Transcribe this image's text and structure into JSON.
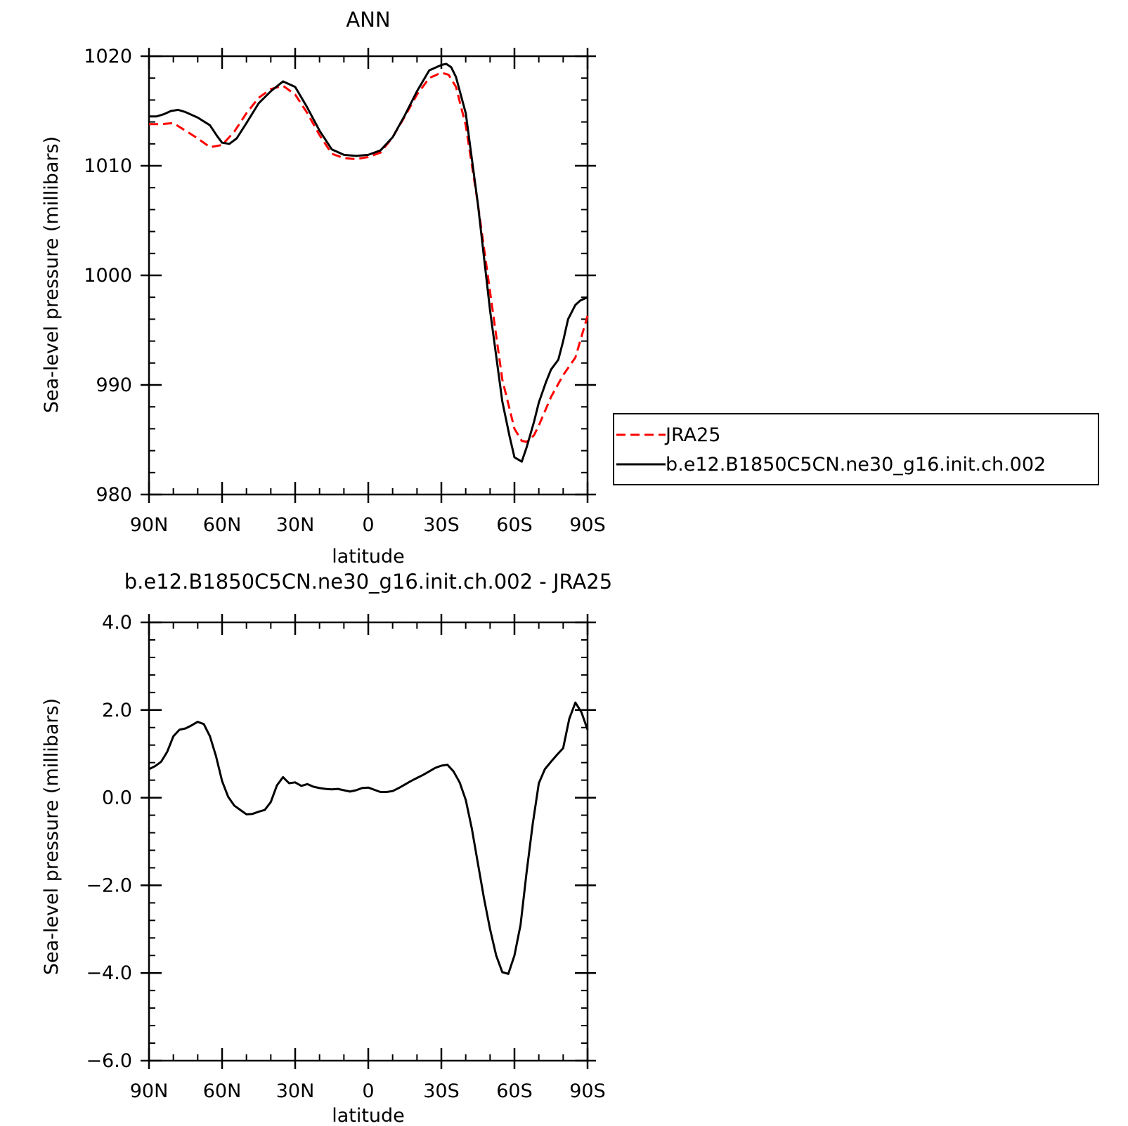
{
  "legend": {
    "entries": [
      {
        "label": "JRA25",
        "color": "#ff0000",
        "dash": true
      },
      {
        "label": "b.e12.B1850C5CN.ne30_g16.init.ch.002",
        "color": "#000000",
        "dash": false
      }
    ]
  },
  "chart_data": [
    {
      "type": "line",
      "title": "ANN",
      "xlabel": "latitude",
      "ylabel": "Sea-level pressure (millibars)",
      "xlim": [
        90,
        -90
      ],
      "ylim": [
        980,
        1020
      ],
      "xticks": [
        {
          "value": 90,
          "label": "90N"
        },
        {
          "value": 60,
          "label": "60N"
        },
        {
          "value": 30,
          "label": "30N"
        },
        {
          "value": 0,
          "label": "0"
        },
        {
          "value": -30,
          "label": "30S"
        },
        {
          "value": -60,
          "label": "60S"
        },
        {
          "value": -90,
          "label": "90S"
        }
      ],
      "yticks": [
        {
          "value": 1020,
          "label": "1020"
        },
        {
          "value": 1010,
          "label": "1010"
        },
        {
          "value": 1000,
          "label": "1000"
        },
        {
          "value": 990,
          "label": "990"
        },
        {
          "value": 980,
          "label": "980"
        }
      ],
      "legend_position": "right",
      "series": [
        {
          "name": "JRA25",
          "color": "#ff0000",
          "dash": true,
          "x": [
            90,
            85,
            80,
            75,
            70,
            65,
            60,
            55,
            50,
            45,
            40,
            35,
            30,
            25,
            20,
            15,
            10,
            5,
            0,
            -5,
            -10,
            -15,
            -20,
            -25,
            -30,
            -33,
            -36,
            -40,
            -45,
            -50,
            -55,
            -60,
            -63,
            -65,
            -68,
            -70,
            -75,
            -80,
            -85,
            -90
          ],
          "y": [
            1013.8,
            1013.8,
            1013.9,
            1013.2,
            1012.5,
            1011.7,
            1011.9,
            1013.1,
            1014.8,
            1016.2,
            1017.0,
            1017.3,
            1016.5,
            1014.8,
            1012.8,
            1011.1,
            1010.7,
            1010.6,
            1010.8,
            1011.2,
            1012.6,
            1014.5,
            1016.5,
            1018.0,
            1018.5,
            1018.3,
            1017.2,
            1013.7,
            1006.5,
            998.5,
            990.5,
            986.0,
            984.9,
            984.8,
            985.4,
            986.3,
            988.9,
            990.9,
            992.5,
            996.3
          ]
        },
        {
          "name": "b.e12.B1850C5CN.ne30_g16.init.ch.002",
          "color": "#000000",
          "dash": false,
          "x": [
            90,
            87,
            84,
            81,
            78,
            75,
            70,
            65,
            62,
            60,
            57,
            54,
            50,
            45,
            40,
            35,
            30,
            25,
            20,
            15,
            10,
            5,
            0,
            -5,
            -10,
            -15,
            -20,
            -25,
            -30,
            -32,
            -34,
            -36,
            -40,
            -45,
            -50,
            -55,
            -58,
            -60,
            -63,
            -65,
            -68,
            -70,
            -73,
            -75,
            -78,
            -80,
            -82,
            -85,
            -87,
            -90
          ],
          "y": [
            1014.5,
            1014.5,
            1014.7,
            1015.0,
            1015.1,
            1014.9,
            1014.4,
            1013.7,
            1012.7,
            1012.1,
            1012.0,
            1012.5,
            1013.9,
            1015.7,
            1016.8,
            1017.7,
            1017.2,
            1015.3,
            1013.2,
            1011.5,
            1011.0,
            1010.9,
            1011.0,
            1011.4,
            1012.6,
            1014.6,
            1016.8,
            1018.7,
            1019.2,
            1019.3,
            1019.0,
            1018.1,
            1014.8,
            1006.5,
            996.8,
            988.5,
            985.3,
            983.4,
            983.0,
            984.3,
            986.6,
            988.4,
            990.3,
            991.4,
            992.3,
            994.0,
            996.0,
            997.3,
            997.7,
            998.0
          ]
        }
      ]
    },
    {
      "type": "line",
      "title": "b.e12.B1850C5CN.ne30_g16.init.ch.002 - JRA25",
      "xlabel": "latitude",
      "ylabel": "Sea-level pressure (millibars)",
      "xlim": [
        90,
        -90
      ],
      "ylim": [
        -6,
        4
      ],
      "xticks": [
        {
          "value": 90,
          "label": "90N"
        },
        {
          "value": 60,
          "label": "60N"
        },
        {
          "value": 30,
          "label": "30N"
        },
        {
          "value": 0,
          "label": "0"
        },
        {
          "value": -30,
          "label": "30S"
        },
        {
          "value": -60,
          "label": "60S"
        },
        {
          "value": -90,
          "label": "90S"
        }
      ],
      "yticks": [
        {
          "value": 4,
          "label": "4.0"
        },
        {
          "value": 2,
          "label": "2.0"
        },
        {
          "value": 0,
          "label": "0.0"
        },
        {
          "value": -2,
          "label": "−2.0"
        },
        {
          "value": -4,
          "label": "−4.0"
        },
        {
          "value": -6,
          "label": "−6.0"
        }
      ],
      "series": [
        {
          "color": "#000000",
          "dash": false,
          "x": [
            90,
            87.5,
            85,
            82.5,
            80,
            77.5,
            75,
            72.5,
            70,
            67.5,
            65,
            62.5,
            60,
            57.5,
            55,
            52.5,
            50,
            47.5,
            45,
            42.5,
            40,
            37.5,
            35,
            32.5,
            30,
            27.5,
            25,
            22.5,
            20,
            17.5,
            15,
            12.5,
            10,
            7.5,
            5,
            2.5,
            0,
            -2.5,
            -5,
            -7.5,
            -10,
            -12.5,
            -15,
            -17.5,
            -20,
            -22.5,
            -25,
            -27.5,
            -30,
            -32.5,
            -35,
            -37.5,
            -40,
            -42.5,
            -45,
            -47.5,
            -50,
            -52.5,
            -55,
            -57.5,
            -60,
            -62.5,
            -65,
            -67.5,
            -70,
            -72.5,
            -75,
            -77.5,
            -80,
            -82.5,
            -85,
            -87.5,
            -90
          ],
          "y": [
            0.65,
            0.72,
            0.82,
            1.05,
            1.4,
            1.55,
            1.58,
            1.65,
            1.73,
            1.68,
            1.4,
            0.95,
            0.38,
            0.02,
            -0.18,
            -0.28,
            -0.38,
            -0.37,
            -0.32,
            -0.28,
            -0.1,
            0.28,
            0.47,
            0.33,
            0.35,
            0.27,
            0.31,
            0.25,
            0.22,
            0.2,
            0.19,
            0.2,
            0.17,
            0.14,
            0.17,
            0.22,
            0.23,
            0.18,
            0.13,
            0.13,
            0.15,
            0.22,
            0.3,
            0.38,
            0.45,
            0.52,
            0.6,
            0.68,
            0.73,
            0.75,
            0.6,
            0.35,
            -0.05,
            -0.7,
            -1.5,
            -2.3,
            -3.0,
            -3.6,
            -3.98,
            -4.02,
            -3.6,
            -2.9,
            -1.7,
            -0.6,
            0.33,
            0.65,
            0.82,
            0.98,
            1.13,
            1.8,
            2.17,
            1.95,
            1.55
          ]
        }
      ]
    }
  ]
}
